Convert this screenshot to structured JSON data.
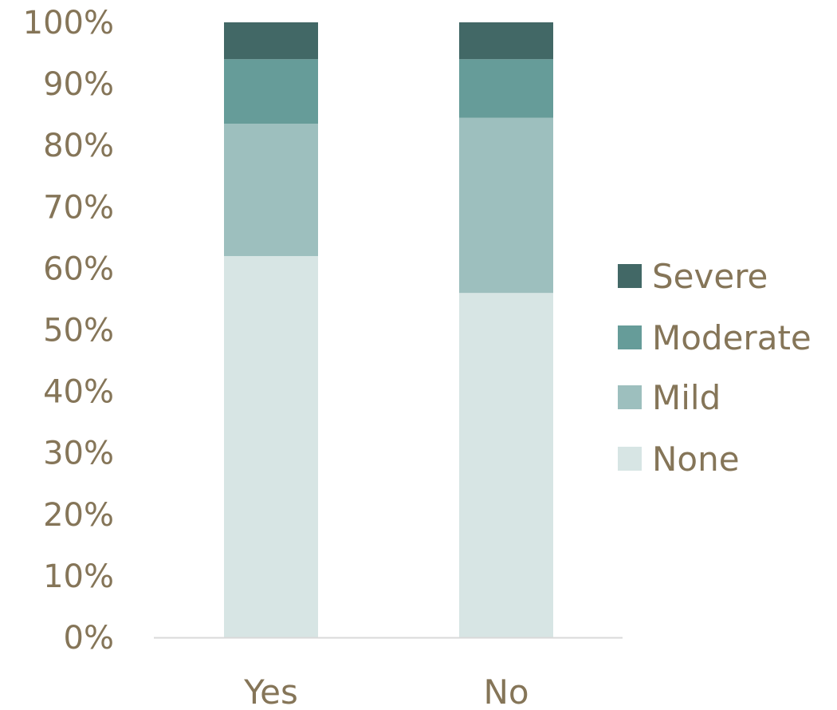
{
  "chart_data": {
    "type": "bar",
    "stacked": true,
    "normalized": true,
    "categories": [
      "Yes",
      "No"
    ],
    "series": [
      {
        "name": "None",
        "values": [
          62,
          56
        ],
        "color": "#d7e5e4"
      },
      {
        "name": "Mild",
        "values": [
          21.5,
          28.5
        ],
        "color": "#9dbfbe"
      },
      {
        "name": "Moderate",
        "values": [
          10.5,
          9.5
        ],
        "color": "#669c99"
      },
      {
        "name": "Severe",
        "values": [
          6,
          6
        ],
        "color": "#426866"
      }
    ],
    "ylim": [
      0,
      100
    ],
    "yticks": [
      "0%",
      "10%",
      "20%",
      "30%",
      "40%",
      "50%",
      "60%",
      "70%",
      "80%",
      "90%",
      "100%"
    ],
    "legend_position": "right",
    "legend_order": [
      "Severe",
      "Moderate",
      "Mild",
      "None"
    ],
    "grid": false,
    "text_color": "#857558",
    "axis_color": "#d9d9d9"
  }
}
